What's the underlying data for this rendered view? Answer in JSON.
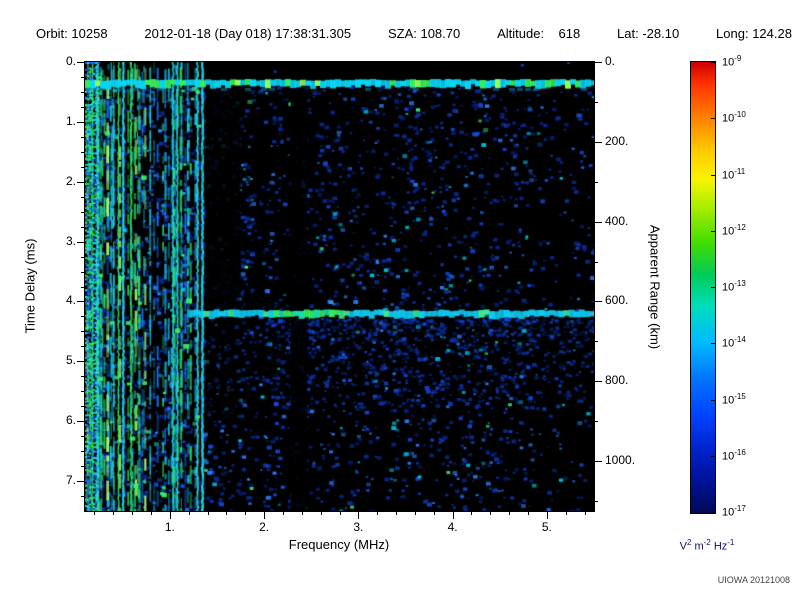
{
  "header": {
    "items": [
      "Orbit: 10258",
      "2012-01-18 (Day 018) 17:38:31.305",
      "SZA: 108.70",
      "Altitude:    618",
      "Lat: -28.10",
      "Long: 124.28"
    ]
  },
  "watermark": "UIOWA 20121008",
  "chart_data": {
    "type": "heatmap",
    "xlabel": "Frequency (MHz)",
    "ylabel_left": "Time Delay (ms)",
    "ylabel_right": "Apparent Range (km)",
    "x_range_mhz": [
      0.1,
      5.5
    ],
    "x_tick_values": [
      1,
      2,
      3,
      4,
      5
    ],
    "x_tick_labels": [
      "1.",
      "2.",
      "3.",
      "4.",
      "5."
    ],
    "y_range_ms": [
      0,
      7.5
    ],
    "y_tick_values": [
      0,
      1,
      2,
      3,
      4,
      5,
      6,
      7
    ],
    "y_tick_labels": [
      "0.",
      "1.",
      "2.",
      "3.",
      "4.",
      "5.",
      "6.",
      "7."
    ],
    "right_axis_range_km": [
      0,
      1125
    ],
    "right_tick_values": [
      0,
      200,
      400,
      600,
      800,
      1000
    ],
    "right_tick_labels": [
      "0.",
      "200.",
      "400.",
      "600.",
      "800.",
      "1000."
    ],
    "colorbar": {
      "scale": "log",
      "tick_base": "10",
      "tick_exponents": [
        "-9",
        "-10",
        "-11",
        "-12",
        "-13",
        "-14",
        "-15",
        "-16",
        "-17"
      ],
      "unit_parts": {
        "v": "V",
        "v_exp": "2",
        "m": " m",
        "m_exp": "-2",
        "hz": " Hz",
        "hz_exp": "-1"
      },
      "gradient_stops": [
        [
          "#cc0000",
          0
        ],
        [
          "#ff3300",
          5
        ],
        [
          "#ff8800",
          13
        ],
        [
          "#ffcc00",
          20
        ],
        [
          "#f8f400",
          26
        ],
        [
          "#aaee00",
          32
        ],
        [
          "#44dd00",
          40
        ],
        [
          "#00cc55",
          47
        ],
        [
          "#00ddbb",
          54
        ],
        [
          "#00bbff",
          62
        ],
        [
          "#0077ff",
          70
        ],
        [
          "#0044ff",
          78
        ],
        [
          "#0022cc",
          86
        ],
        [
          "#001099",
          93
        ],
        [
          "#000a55",
          100
        ]
      ]
    },
    "features": [
      {
        "name": "ionospheric-echo-band",
        "time_delay_ms": 0.35,
        "apparent_range_km": 52,
        "freq_span_mhz": [
          0.1,
          5.5
        ],
        "intensity": "bright cyan-green"
      },
      {
        "name": "surface-echo-band",
        "time_delay_ms": 4.2,
        "apparent_range_km": 630,
        "freq_span_mhz": [
          1.2,
          5.5
        ],
        "intensity": "bright cyan, green near 2.1-2.7 MHz",
        "haze_below_ms": 1.5
      },
      {
        "name": "low-frequency-interference-stripes",
        "freq_span_mhz": [
          0.1,
          1.35
        ],
        "time_delay_span_ms": [
          0,
          7.5
        ],
        "intensity": "vertical cyan/green striping"
      },
      {
        "name": "absorption-gap-1",
        "freq_span_mhz": [
          1.38,
          1.75
        ]
      },
      {
        "name": "absorption-gap-2",
        "freq_span_mhz": [
          2.28,
          2.46
        ]
      },
      {
        "name": "diffuse-noise",
        "description": "scattered weak blue speckle over black background, denser left of 3 MHz"
      }
    ],
    "render": {
      "seed": 1337,
      "speckle_count": 2600,
      "left_cluster_count": 950,
      "stripe_count": 58,
      "bright_stripe_count": 9,
      "haze_count": 750,
      "green_blob_count": 26
    }
  }
}
